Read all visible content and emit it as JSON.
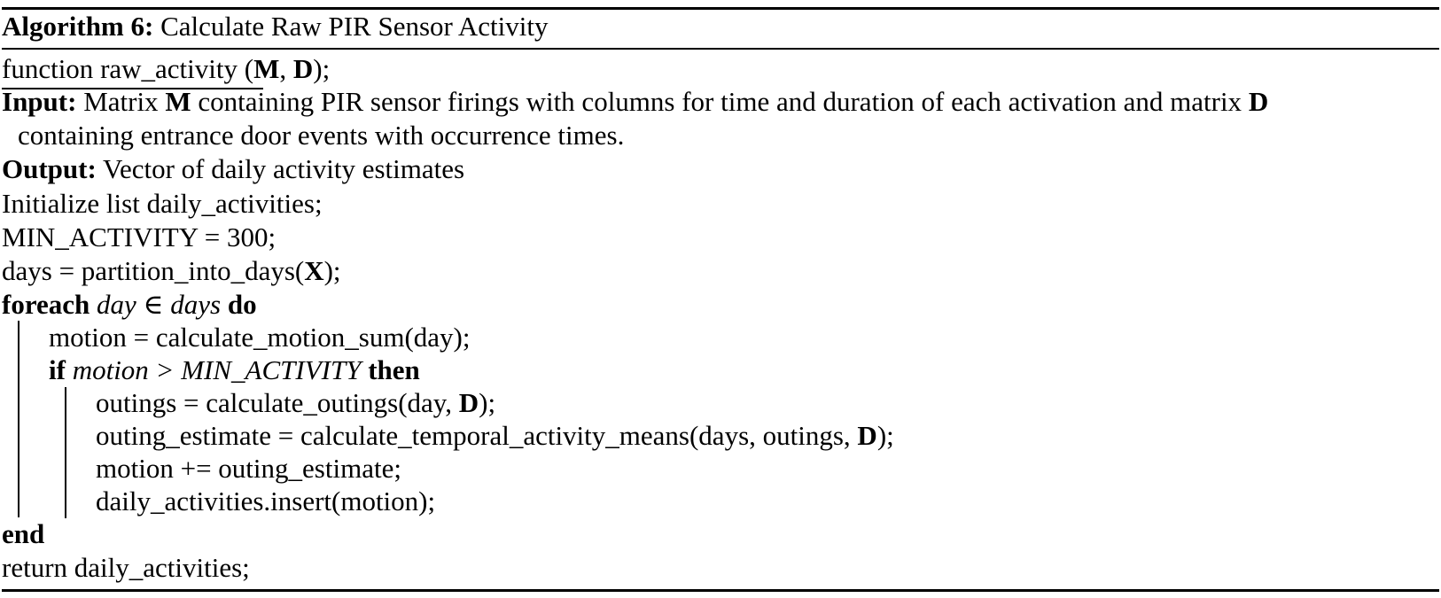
{
  "algorithm": {
    "label": "Algorithm 6:",
    "title": "Calculate Raw PIR Sensor Activity",
    "signature": {
      "keyword": "function",
      "name": "raw_activity",
      "open": " (",
      "arg1": "M",
      "sep": ", ",
      "arg2": "D",
      "close": ");"
    },
    "input": {
      "label": "Input:",
      "text_a": "Matrix ",
      "matrix_m": "M",
      "text_b": " containing PIR sensor firings with columns for time and duration of each activation and matrix ",
      "matrix_d": "D",
      "text_c": "containing entrance door events with occurrence times."
    },
    "output": {
      "label": "Output:",
      "text": "Vector of daily activity estimates"
    },
    "steps": {
      "init": "Initialize list daily_activities;",
      "min_activity": "MIN_ACTIVITY = 300;",
      "days_a": "days = partition_into_days(",
      "days_x": "X",
      "days_b": ");",
      "foreach_kw": "foreach",
      "foreach_var": "day",
      "foreach_in": " ∈ ",
      "foreach_set": "days",
      "foreach_do": "do",
      "motion": "motion = calculate_motion_sum(day);",
      "if_kw": "if",
      "if_cond": "motion > MIN_ACTIVITY",
      "if_then": "then",
      "outings_a": "outings = calculate_outings(day, ",
      "outings_d": "D",
      "outings_b": ");",
      "estimate_a": "outing_estimate = calculate_temporal_activity_means(days, outings, ",
      "estimate_d": "D",
      "estimate_b": ");",
      "motion_add": "motion += outing_estimate;",
      "insert": "daily_activities.insert(motion);",
      "end_kw": "end",
      "return": "return daily_activities;"
    }
  }
}
